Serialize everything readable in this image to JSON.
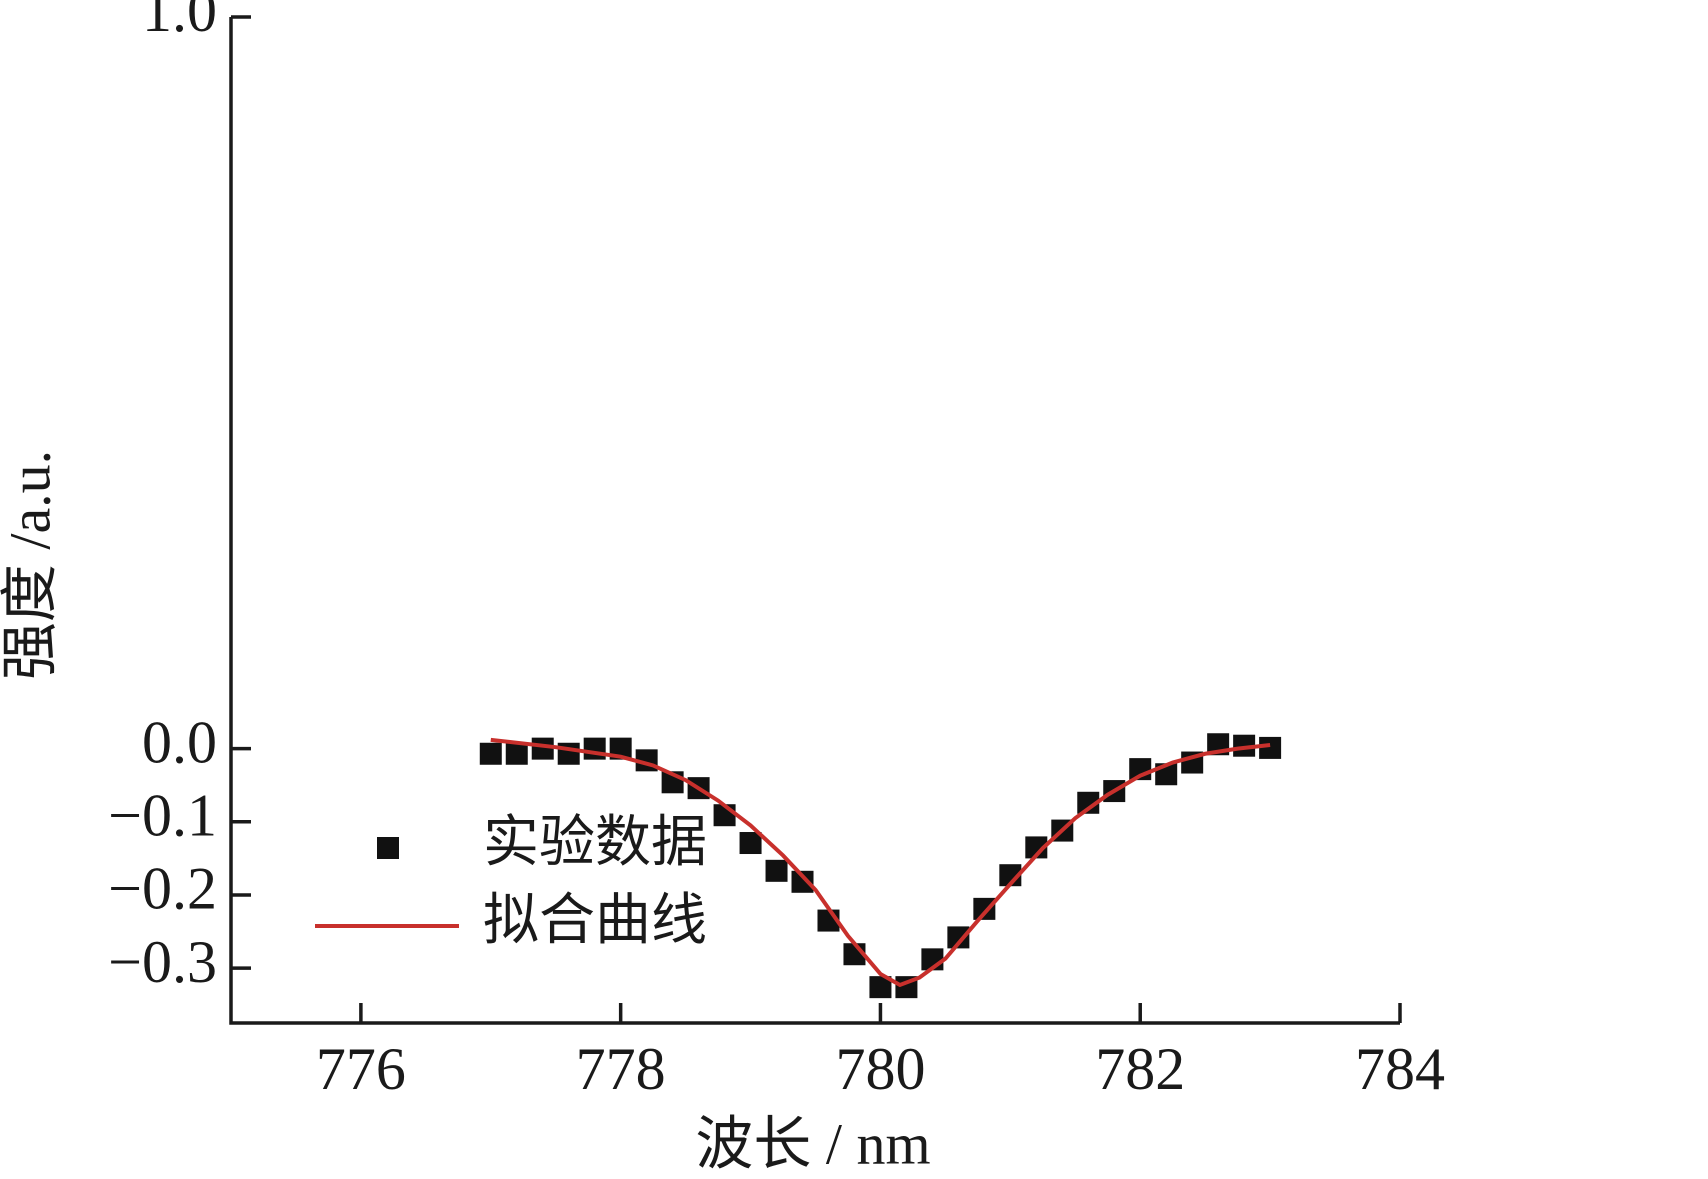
{
  "chart_data": {
    "type": "scatter",
    "x_label": "波长 / nm",
    "y_label": "强度 /a.u.",
    "xlim": [
      775,
      784
    ],
    "xticks": [
      776,
      778,
      780,
      782,
      784
    ],
    "ylim": [
      -0.375,
      1.0
    ],
    "yticks": [
      {
        "value": 1.0,
        "label": "1.0"
      },
      {
        "value": 0.0,
        "label": "0.0"
      },
      {
        "value": -0.1,
        "label": "−0.1"
      },
      {
        "value": -0.2,
        "label": "−0.2"
      },
      {
        "value": -0.3,
        "label": "−0.3"
      }
    ],
    "legend": "lower left",
    "series": [
      {
        "name": "实验数据",
        "type": "scatter",
        "color": "#111111",
        "x": [
          777,
          777.2,
          777.4,
          777.6,
          777.8,
          778,
          778.2,
          778.4,
          778.6,
          778.8,
          779,
          779.2,
          779.4,
          779.6,
          779.8,
          780,
          780.2,
          780.4,
          780.6,
          780.8,
          781,
          781.2,
          781.4,
          781.6,
          781.8,
          782,
          782.2,
          782.4,
          782.6,
          782.8,
          783
        ],
        "values": [
          -0.007,
          -0.007,
          0.0,
          -0.007,
          0.0,
          0.0,
          -0.016,
          -0.046,
          -0.054,
          -0.091,
          -0.129,
          -0.167,
          -0.182,
          -0.235,
          -0.281,
          -0.326,
          -0.326,
          -0.288,
          -0.258,
          -0.219,
          -0.173,
          -0.135,
          -0.112,
          -0.074,
          -0.058,
          -0.028,
          -0.035,
          -0.019,
          0.006,
          0.004,
          0.001
        ]
      },
      {
        "name": "拟合曲线",
        "type": "line",
        "color": "#c8302c",
        "x": [
          777,
          777.5,
          778,
          778.25,
          778.5,
          778.75,
          779,
          779.25,
          779.5,
          779.75,
          780,
          780.15,
          780.3,
          780.5,
          780.75,
          781,
          781.25,
          781.5,
          781.75,
          782,
          782.25,
          782.5,
          782.75,
          783
        ],
        "values": [
          0.012,
          0.002,
          -0.011,
          -0.023,
          -0.043,
          -0.071,
          -0.105,
          -0.146,
          -0.193,
          -0.256,
          -0.308,
          -0.323,
          -0.313,
          -0.287,
          -0.235,
          -0.185,
          -0.136,
          -0.095,
          -0.063,
          -0.037,
          -0.019,
          -0.007,
          0.0,
          0.005
        ]
      }
    ]
  }
}
